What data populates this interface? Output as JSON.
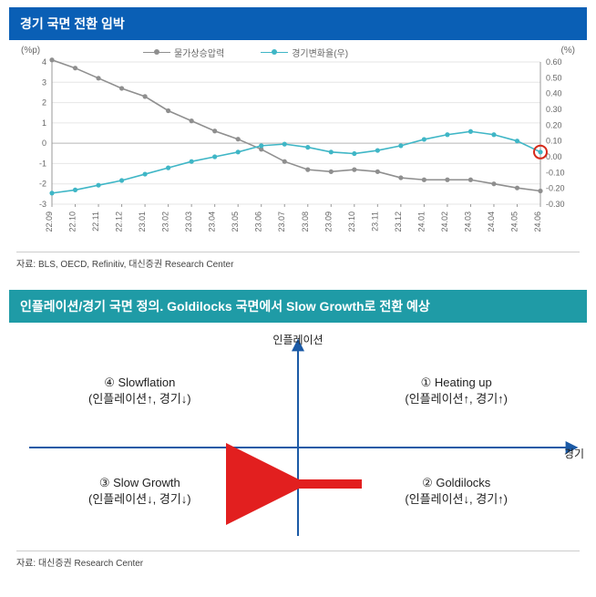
{
  "chart1": {
    "header_bg": "#0a5fb5",
    "header_text": "경기 국면 전환 임박",
    "y_left_label": "(%p)",
    "y_right_label": "(%)",
    "legend": [
      {
        "label": "물가상승압력",
        "color": "#8f8f8f"
      },
      {
        "label": "경기변화율(우)",
        "color": "#3fb6c6"
      }
    ],
    "x_labels": [
      "22.09",
      "22.10",
      "22.11",
      "22.12",
      "23.01",
      "23.02",
      "23.03",
      "23.04",
      "23.05",
      "23.06",
      "23.07",
      "23.08",
      "23.09",
      "23.10",
      "23.11",
      "23.12",
      "24.01",
      "24.02",
      "24.03",
      "24.04",
      "24.05",
      "24.06"
    ],
    "y_left_ticks": [
      4,
      3,
      2,
      1,
      0,
      -1,
      -2,
      -3
    ],
    "y_left_range": [
      -3,
      4
    ],
    "y_right_ticks": [
      0.6,
      0.5,
      0.4,
      0.3,
      0.2,
      0.1,
      0.0,
      -0.1,
      -0.2,
      -0.3
    ],
    "y_right_range": [
      -0.3,
      0.6
    ],
    "series_grey": [
      4.1,
      3.7,
      3.2,
      2.7,
      2.3,
      1.6,
      1.1,
      0.6,
      0.2,
      -0.3,
      -0.9,
      -1.3,
      -1.4,
      -1.3,
      -1.4,
      -1.7,
      -1.8,
      -1.8,
      -1.8,
      -2.0,
      -2.2,
      -2.35
    ],
    "series_teal": [
      -0.23,
      -0.21,
      -0.18,
      -0.15,
      -0.11,
      -0.07,
      -0.03,
      0.0,
      0.03,
      0.07,
      0.08,
      0.06,
      0.03,
      0.02,
      0.04,
      0.07,
      0.11,
      0.14,
      0.16,
      0.14,
      0.1,
      0.03
    ],
    "grid_color": "#e6e6e6",
    "axis_color": "#999999",
    "tick_font_size": 9,
    "highlight_circle": {
      "index": 21,
      "color": "#d62a1a",
      "radius": 7
    },
    "source": "자료: BLS, OECD, Refinitiv, 대신증권 Research Center"
  },
  "chart2": {
    "header_bg": "#1f9ba6",
    "header_text": "인플레이션/경기 국면 정의. Goldilocks 국면에서 Slow Growth로 전환 예상",
    "axis_color": "#1b5aa6",
    "axis_width": 2,
    "arrow_color": "#e21f1f",
    "x_axis_label": "경기",
    "y_axis_label": "인플레이션",
    "q1": {
      "line1": "① Heating up",
      "line2": "(인플레이션↑, 경기↑)"
    },
    "q2": {
      "line1": "② Goldilocks",
      "line2": "(인플레이션↓, 경기↑)"
    },
    "q3": {
      "line1": "③ Slow Growth",
      "line2": "(인플레이션↓, 경기↓)"
    },
    "q4": {
      "line1": "④ Slowflation",
      "line2": "(인플레이션↑, 경기↓)"
    },
    "source": "자료: 대신증권 Research Center"
  }
}
